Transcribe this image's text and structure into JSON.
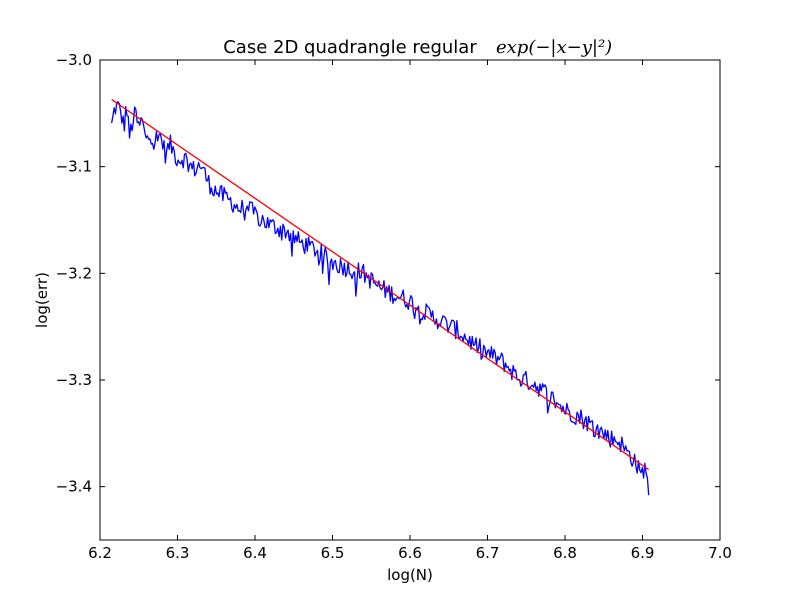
{
  "chart_data": {
    "type": "line",
    "title": "Case 2D quadrangle regular",
    "title_math": "exp(−|x−y|²)",
    "xlabel": "log(N)",
    "ylabel": "log(err)",
    "xlim": [
      6.2,
      7.0
    ],
    "ylim": [
      -3.45,
      -3.0
    ],
    "x_ticks": [
      "6.2",
      "6.3",
      "6.4",
      "6.5",
      "6.6",
      "6.7",
      "6.8",
      "6.9",
      "7.0"
    ],
    "y_ticks": [
      "−3.0",
      "−3.1",
      "−3.2",
      "−3.3",
      "−3.4"
    ],
    "grid": false,
    "legend": "none",
    "series": [
      {
        "color": "#0000ff",
        "style": "noisy",
        "x_range": [
          6.215,
          6.908
        ],
        "points": [
          [
            6.215,
            -3.062
          ],
          [
            6.219,
            -3.045
          ],
          [
            6.223,
            -3.043
          ],
          [
            6.227,
            -3.05
          ],
          [
            6.231,
            -3.063
          ],
          [
            6.234,
            -3.042
          ],
          [
            6.238,
            -3.072
          ],
          [
            6.242,
            -3.058
          ],
          [
            6.246,
            -3.05
          ],
          [
            6.25,
            -3.065
          ],
          [
            6.254,
            -3.055
          ],
          [
            6.258,
            -3.072
          ],
          [
            6.265,
            -3.067
          ],
          [
            6.27,
            -3.08
          ],
          [
            6.275,
            -3.068
          ],
          [
            6.28,
            -3.075
          ],
          [
            6.285,
            -3.09
          ],
          [
            6.29,
            -3.078
          ],
          [
            6.3,
            -3.093
          ],
          [
            6.31,
            -3.092
          ],
          [
            6.32,
            -3.103
          ],
          [
            6.33,
            -3.098
          ],
          [
            6.34,
            -3.115
          ],
          [
            6.35,
            -3.123
          ],
          [
            6.36,
            -3.128
          ],
          [
            6.37,
            -3.133
          ],
          [
            6.38,
            -3.14
          ],
          [
            6.39,
            -3.138
          ],
          [
            6.4,
            -3.145
          ],
          [
            6.42,
            -3.155
          ],
          [
            6.44,
            -3.16
          ],
          [
            6.46,
            -3.172
          ],
          [
            6.48,
            -3.178
          ],
          [
            6.5,
            -3.19
          ],
          [
            6.52,
            -3.195
          ],
          [
            6.54,
            -3.2
          ],
          [
            6.56,
            -3.213
          ],
          [
            6.58,
            -3.22
          ],
          [
            6.6,
            -3.226
          ],
          [
            6.62,
            -3.237
          ],
          [
            6.64,
            -3.245
          ],
          [
            6.66,
            -3.253
          ],
          [
            6.68,
            -3.265
          ],
          [
            6.7,
            -3.275
          ],
          [
            6.72,
            -3.283
          ],
          [
            6.74,
            -3.298
          ],
          [
            6.76,
            -3.303
          ],
          [
            6.78,
            -3.315
          ],
          [
            6.8,
            -3.328
          ],
          [
            6.82,
            -3.335
          ],
          [
            6.84,
            -3.345
          ],
          [
            6.86,
            -3.355
          ],
          [
            6.87,
            -3.357
          ],
          [
            6.88,
            -3.368
          ],
          [
            6.89,
            -3.375
          ],
          [
            6.898,
            -3.39
          ],
          [
            6.902,
            -3.382
          ],
          [
            6.906,
            -3.388
          ],
          [
            6.908,
            -3.388
          ]
        ]
      },
      {
        "color": "#ff0000",
        "style": "straight",
        "points": [
          [
            6.215,
            -3.037
          ],
          [
            6.908,
            -3.384
          ]
        ]
      }
    ]
  }
}
